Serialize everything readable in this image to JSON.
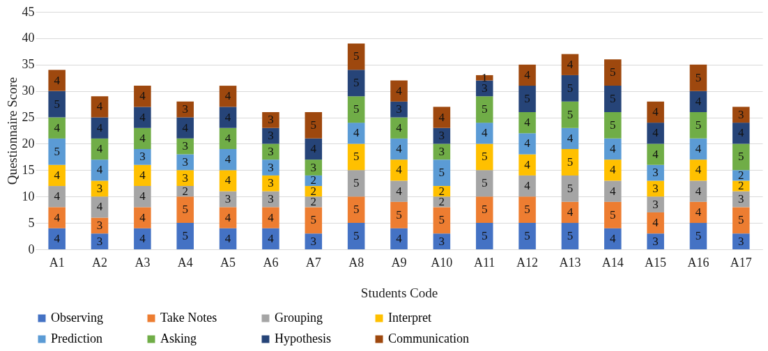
{
  "chart_data": {
    "type": "bar",
    "stacked": true,
    "xlabel": "Students Code",
    "ylabel": "Questionnaire Score",
    "categories": [
      "A1",
      "A2",
      "A3",
      "A4",
      "A5",
      "A6",
      "A7",
      "A8",
      "A9",
      "A10",
      "A11",
      "A12",
      "A13",
      "A14",
      "A15",
      "A16",
      "A17"
    ],
    "series": [
      {
        "name": "Observing",
        "color": "#4472c4",
        "values": [
          4,
          3,
          4,
          5,
          4,
          4,
          3,
          5,
          4,
          3,
          5,
          5,
          5,
          4,
          3,
          5,
          3
        ]
      },
      {
        "name": "Take Notes",
        "color": "#ed7d31",
        "values": [
          4,
          3,
          4,
          5,
          4,
          4,
          5,
          5,
          5,
          5,
          5,
          5,
          4,
          5,
          4,
          4,
          5
        ]
      },
      {
        "name": "Grouping",
        "color": "#a5a5a5",
        "values": [
          4,
          4,
          4,
          2,
          3,
          3,
          2,
          5,
          4,
          2,
          5,
          4,
          5,
          4,
          3,
          4,
          3
        ]
      },
      {
        "name": "Interpret",
        "color": "#ffc000",
        "values": [
          4,
          3,
          4,
          3,
          4,
          3,
          2,
          5,
          4,
          2,
          5,
          4,
          5,
          4,
          3,
          4,
          2
        ]
      },
      {
        "name": "Prediction",
        "color": "#5b9bd5",
        "values": [
          5,
          4,
          3,
          3,
          4,
          3,
          2,
          4,
          4,
          5,
          4,
          4,
          4,
          4,
          3,
          4,
          2
        ]
      },
      {
        "name": "Asking",
        "color": "#70ad47",
        "values": [
          4,
          4,
          4,
          3,
          4,
          3,
          3,
          5,
          4,
          3,
          5,
          4,
          5,
          5,
          4,
          5,
          5
        ]
      },
      {
        "name": "Hypothesis",
        "color": "#264478",
        "values": [
          5,
          4,
          4,
          4,
          4,
          3,
          4,
          5,
          3,
          3,
          3,
          5,
          5,
          5,
          4,
          4,
          4
        ]
      },
      {
        "name": "Communication",
        "color": "#9e480e",
        "values": [
          4,
          4,
          4,
          3,
          4,
          3,
          5,
          5,
          4,
          4,
          1,
          4,
          4,
          5,
          4,
          5,
          3
        ]
      }
    ],
    "ylim": [
      0,
      45
    ],
    "yticks": [
      0,
      5,
      10,
      15,
      20,
      25,
      30,
      35,
      40,
      45
    ],
    "grid": "y",
    "legend": "bottom",
    "data_labels": true
  }
}
